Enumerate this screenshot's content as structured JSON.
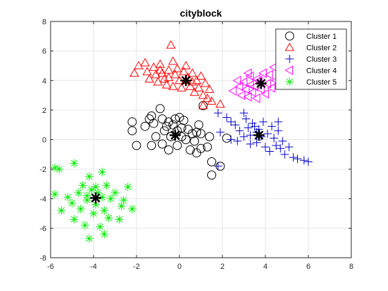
{
  "chart_data": {
    "type": "scatter",
    "title": "cityblock",
    "xlabel": "",
    "ylabel": "",
    "xlim": [
      -6,
      8
    ],
    "ylim": [
      -8,
      8
    ],
    "xticks": [
      "-6",
      "-4",
      "-2",
      "0",
      "2",
      "4",
      "6",
      "8"
    ],
    "yticks": [
      "-8",
      "-6",
      "-4",
      "-2",
      "0",
      "2",
      "4",
      "6",
      "8"
    ],
    "grid": true,
    "legend_position": "top-right",
    "series": [
      {
        "name": "Cluster 1",
        "marker": "circle",
        "color": "#000000",
        "points": [
          [
            -2.2,
            1.2
          ],
          [
            -2.2,
            0.6
          ],
          [
            -2.0,
            -0.4
          ],
          [
            -1.6,
            0.9
          ],
          [
            -1.4,
            1.4
          ],
          [
            -1.3,
            1.6
          ],
          [
            -1.2,
            1.1
          ],
          [
            -1.1,
            0.2
          ],
          [
            -1.3,
            -0.4
          ],
          [
            -0.9,
            2.1
          ],
          [
            -0.8,
            1.4
          ],
          [
            -0.8,
            -0.3
          ],
          [
            -0.7,
            0.6
          ],
          [
            -0.6,
            0.9
          ],
          [
            -0.5,
            -0.7
          ],
          [
            -0.4,
            0.2
          ],
          [
            -0.3,
            1.0
          ],
          [
            -0.2,
            1.4
          ],
          [
            -0.1,
            0.6
          ],
          [
            -0.1,
            -0.4
          ],
          [
            0.1,
            0.8
          ],
          [
            0.1,
            0.2
          ],
          [
            0.2,
            1.3
          ],
          [
            0.3,
            0.0
          ],
          [
            0.4,
            0.7
          ],
          [
            0.5,
            -0.7
          ],
          [
            0.6,
            0.4
          ],
          [
            0.7,
            -0.1
          ],
          [
            0.8,
            0.5
          ],
          [
            0.8,
            -0.9
          ],
          [
            0.9,
            1.0
          ],
          [
            1.0,
            0.4
          ],
          [
            1.0,
            -0.6
          ],
          [
            1.1,
            2.3
          ],
          [
            1.3,
            -0.5
          ],
          [
            1.5,
            -1.5
          ],
          [
            1.5,
            -2.4
          ],
          [
            1.9,
            -1.8
          ],
          [
            2.2,
            0.1
          ],
          [
            1.4,
            0.2
          ],
          [
            -0.5,
            1.2
          ],
          [
            0.0,
            1.5
          ]
        ]
      },
      {
        "name": "Cluster 2",
        "marker": "triangle",
        "color": "#ff0000",
        "points": [
          [
            -2.1,
            4.5
          ],
          [
            -1.9,
            5.0
          ],
          [
            -1.6,
            5.2
          ],
          [
            -1.5,
            4.6
          ],
          [
            -1.4,
            4.1
          ],
          [
            -1.2,
            4.9
          ],
          [
            -1.1,
            4.4
          ],
          [
            -1.0,
            3.9
          ],
          [
            -0.9,
            5.1
          ],
          [
            -0.8,
            4.5
          ],
          [
            -0.7,
            4.1
          ],
          [
            -0.6,
            3.7
          ],
          [
            -0.5,
            4.7
          ],
          [
            -0.5,
            4.2
          ],
          [
            -0.4,
            6.4
          ],
          [
            -0.3,
            5.3
          ],
          [
            -0.3,
            3.6
          ],
          [
            -0.2,
            4.4
          ],
          [
            -0.1,
            4.8
          ],
          [
            0.0,
            4.0
          ],
          [
            0.1,
            3.5
          ],
          [
            0.2,
            4.6
          ],
          [
            0.3,
            5.0
          ],
          [
            0.4,
            4.2
          ],
          [
            0.5,
            3.6
          ],
          [
            0.6,
            4.5
          ],
          [
            0.7,
            3.2
          ],
          [
            0.8,
            4.0
          ],
          [
            0.9,
            3.5
          ],
          [
            1.0,
            4.3
          ],
          [
            1.1,
            3.0
          ],
          [
            1.2,
            3.8
          ],
          [
            1.3,
            2.8
          ],
          [
            1.4,
            3.4
          ],
          [
            1.1,
            2.3
          ],
          [
            1.5,
            2.6
          ],
          [
            1.9,
            2.4
          ],
          [
            0.3,
            4.0
          ],
          [
            -0.9,
            4.7
          ],
          [
            0.6,
            3.9
          ]
        ]
      },
      {
        "name": "Cluster 3",
        "marker": "plus",
        "color": "#0000cc",
        "points": [
          [
            1.8,
            1.8
          ],
          [
            1.9,
            0.5
          ],
          [
            2.2,
            1.5
          ],
          [
            2.4,
            1.2
          ],
          [
            2.6,
            1.0
          ],
          [
            2.8,
            0.6
          ],
          [
            3.0,
            1.8
          ],
          [
            3.1,
            1.4
          ],
          [
            3.2,
            0.8
          ],
          [
            3.3,
            0.3
          ],
          [
            3.3,
            -0.3
          ],
          [
            3.4,
            1.1
          ],
          [
            3.5,
            0.9
          ],
          [
            3.6,
            -0.2
          ],
          [
            3.7,
            0.7
          ],
          [
            3.8,
            0.2
          ],
          [
            3.9,
            1.2
          ],
          [
            4.0,
            -0.5
          ],
          [
            4.1,
            0.4
          ],
          [
            4.2,
            -0.8
          ],
          [
            4.3,
            0.9
          ],
          [
            4.4,
            0.1
          ],
          [
            4.5,
            -0.4
          ],
          [
            4.6,
            0.6
          ],
          [
            4.7,
            -0.6
          ],
          [
            4.8,
            -0.1
          ],
          [
            4.9,
            -1.0
          ],
          [
            5.1,
            -0.5
          ],
          [
            5.3,
            -1.2
          ],
          [
            5.5,
            -1.3
          ],
          [
            5.8,
            -1.4
          ],
          [
            6.0,
            -1.5
          ],
          [
            2.7,
            -0.1
          ],
          [
            3.0,
            0.2
          ],
          [
            2.4,
            0.0
          ],
          [
            1.8,
            -1.8
          ],
          [
            4.6,
            1.2
          ],
          [
            3.6,
            0.5
          ]
        ]
      },
      {
        "name": "Cluster 4",
        "marker": "triangle-left",
        "color": "#ff00ff",
        "points": [
          [
            2.5,
            3.3
          ],
          [
            2.8,
            3.6
          ],
          [
            2.9,
            3.0
          ],
          [
            3.0,
            3.9
          ],
          [
            3.1,
            3.4
          ],
          [
            3.2,
            2.9
          ],
          [
            3.3,
            3.7
          ],
          [
            3.3,
            4.3
          ],
          [
            3.4,
            3.2
          ],
          [
            3.5,
            3.6
          ],
          [
            3.6,
            2.8
          ],
          [
            3.7,
            4.0
          ],
          [
            3.8,
            3.4
          ],
          [
            3.9,
            4.5
          ],
          [
            4.0,
            3.1
          ],
          [
            4.1,
            3.8
          ],
          [
            4.2,
            4.4
          ],
          [
            4.3,
            3.5
          ],
          [
            4.5,
            4.0
          ],
          [
            4.7,
            4.7
          ],
          [
            4.9,
            4.2
          ],
          [
            5.1,
            4.8
          ],
          [
            3.2,
            4.5
          ],
          [
            4.4,
            4.9
          ],
          [
            2.7,
            4.0
          ],
          [
            3.6,
            4.1
          ]
        ]
      },
      {
        "name": "Cluster 5",
        "marker": "asterisk",
        "color": "#00ee00",
        "points": [
          [
            -5.8,
            -3.7
          ],
          [
            -5.6,
            -2.0
          ],
          [
            -5.5,
            -4.8
          ],
          [
            -5.2,
            -3.9
          ],
          [
            -5.0,
            -4.3
          ],
          [
            -4.9,
            -1.6
          ],
          [
            -4.9,
            -5.4
          ],
          [
            -4.7,
            -3.6
          ],
          [
            -4.6,
            -4.7
          ],
          [
            -4.5,
            -3.1
          ],
          [
            -4.4,
            -5.8
          ],
          [
            -4.3,
            -4.1
          ],
          [
            -4.2,
            -2.5
          ],
          [
            -4.2,
            -6.7
          ],
          [
            -4.1,
            -3.4
          ],
          [
            -4.0,
            -5.0
          ],
          [
            -3.9,
            -4.4
          ],
          [
            -3.8,
            -3.6
          ],
          [
            -3.7,
            -5.9
          ],
          [
            -3.6,
            -2.2
          ],
          [
            -3.6,
            -3.9
          ],
          [
            -3.5,
            -4.8
          ],
          [
            -3.4,
            -3.1
          ],
          [
            -3.3,
            -5.3
          ],
          [
            -3.2,
            -4.0
          ],
          [
            -3.0,
            -3.6
          ],
          [
            -2.8,
            -5.4
          ],
          [
            -2.7,
            -4.5
          ],
          [
            -2.6,
            -4.1
          ],
          [
            -2.4,
            -3.2
          ],
          [
            -2.2,
            -4.7
          ],
          [
            -5.8,
            -1.9
          ],
          [
            -3.5,
            -6.4
          ],
          [
            -4.3,
            -3.8
          ],
          [
            -3.9,
            -3.2
          ]
        ]
      }
    ],
    "centroids": [
      [
        -0.2,
        0.3
      ],
      [
        0.3,
        4.0
      ],
      [
        3.7,
        0.3
      ],
      [
        3.8,
        3.8
      ],
      [
        -3.9,
        -3.95
      ]
    ],
    "centroid_marker": "asterisk",
    "centroid_color": "#000000"
  }
}
